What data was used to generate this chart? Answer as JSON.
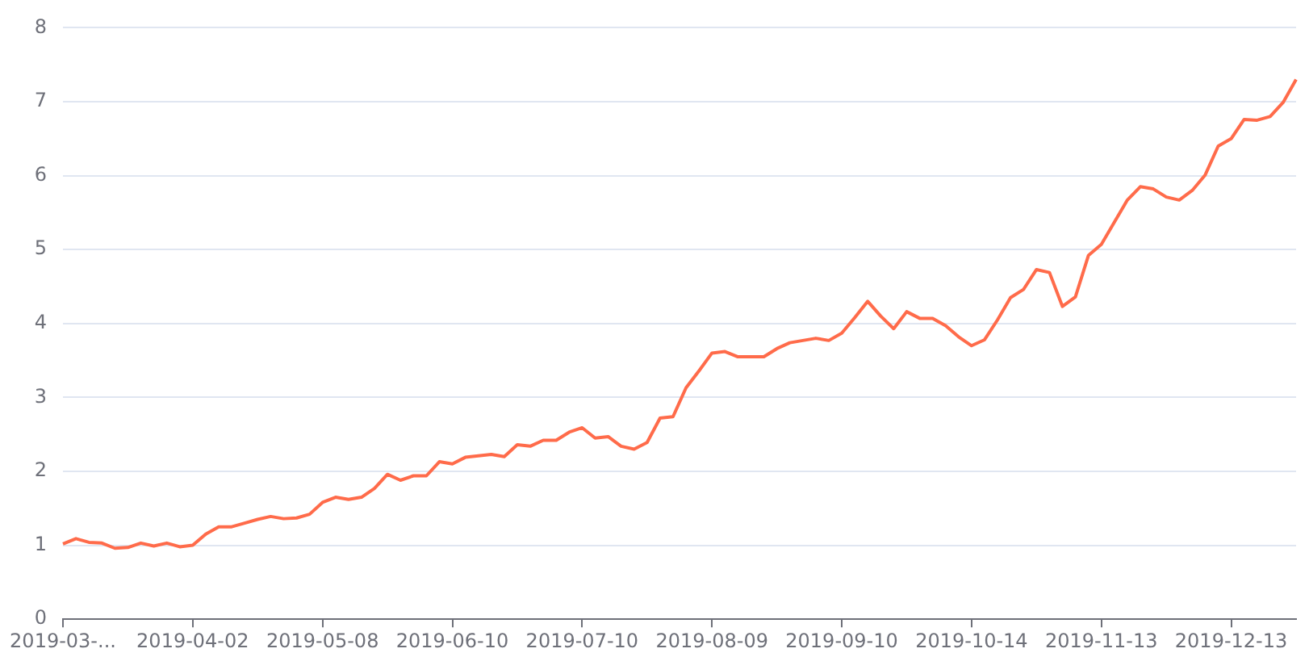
{
  "chart_data": {
    "type": "line",
    "categories": [
      "2019-03-...",
      null,
      null,
      null,
      null,
      null,
      null,
      null,
      null,
      null,
      "2019-04-02",
      null,
      null,
      null,
      null,
      null,
      null,
      null,
      null,
      null,
      "2019-05-08",
      null,
      null,
      null,
      null,
      null,
      null,
      null,
      null,
      null,
      "2019-06-10",
      null,
      null,
      null,
      null,
      null,
      null,
      null,
      null,
      null,
      "2019-07-10",
      null,
      null,
      null,
      null,
      null,
      null,
      null,
      null,
      null,
      "2019-08-09",
      null,
      null,
      null,
      null,
      null,
      null,
      null,
      null,
      null,
      "2019-09-10",
      null,
      null,
      null,
      null,
      null,
      null,
      null,
      null,
      null,
      "2019-10-14",
      null,
      null,
      null,
      null,
      null,
      null,
      null,
      null,
      null,
      "2019-11-13",
      null,
      null,
      null,
      null,
      null,
      null,
      null,
      null,
      null,
      "2019-12-13",
      null,
      null,
      null,
      null,
      null
    ],
    "series": [
      {
        "color": "#ff6b4a",
        "values": [
          1.02,
          1.09,
          1.04,
          1.03,
          0.96,
          0.97,
          1.03,
          0.99,
          1.03,
          0.98,
          1.0,
          1.15,
          1.25,
          1.25,
          1.3,
          1.35,
          1.39,
          1.36,
          1.37,
          1.42,
          1.58,
          1.65,
          1.62,
          1.65,
          1.77,
          1.96,
          1.88,
          1.94,
          1.94,
          2.13,
          2.1,
          2.19,
          2.21,
          2.23,
          2.2,
          2.36,
          2.34,
          2.42,
          2.42,
          2.53,
          2.59,
          2.45,
          2.47,
          2.34,
          2.3,
          2.39,
          2.72,
          2.74,
          3.13,
          3.36,
          3.6,
          3.62,
          3.55,
          3.55,
          3.55,
          3.66,
          3.74,
          3.77,
          3.8,
          3.77,
          3.87,
          4.08,
          4.3,
          4.1,
          3.93,
          4.16,
          4.07,
          4.07,
          3.97,
          3.82,
          3.7,
          3.78,
          4.05,
          4.35,
          4.46,
          4.73,
          4.69,
          4.23,
          4.36,
          4.92,
          5.07,
          5.37,
          5.67,
          5.85,
          5.82,
          5.71,
          5.67,
          5.8,
          6.01,
          6.4,
          6.5,
          6.76,
          6.75,
          6.8,
          6.99,
          7.3
        ]
      }
    ],
    "ylim": [
      0,
      8
    ],
    "yticks": [
      0,
      1,
      2,
      3,
      4,
      5,
      6,
      7,
      8
    ],
    "grid": "y",
    "legend": false,
    "marker": "none",
    "line_style": "solid"
  }
}
